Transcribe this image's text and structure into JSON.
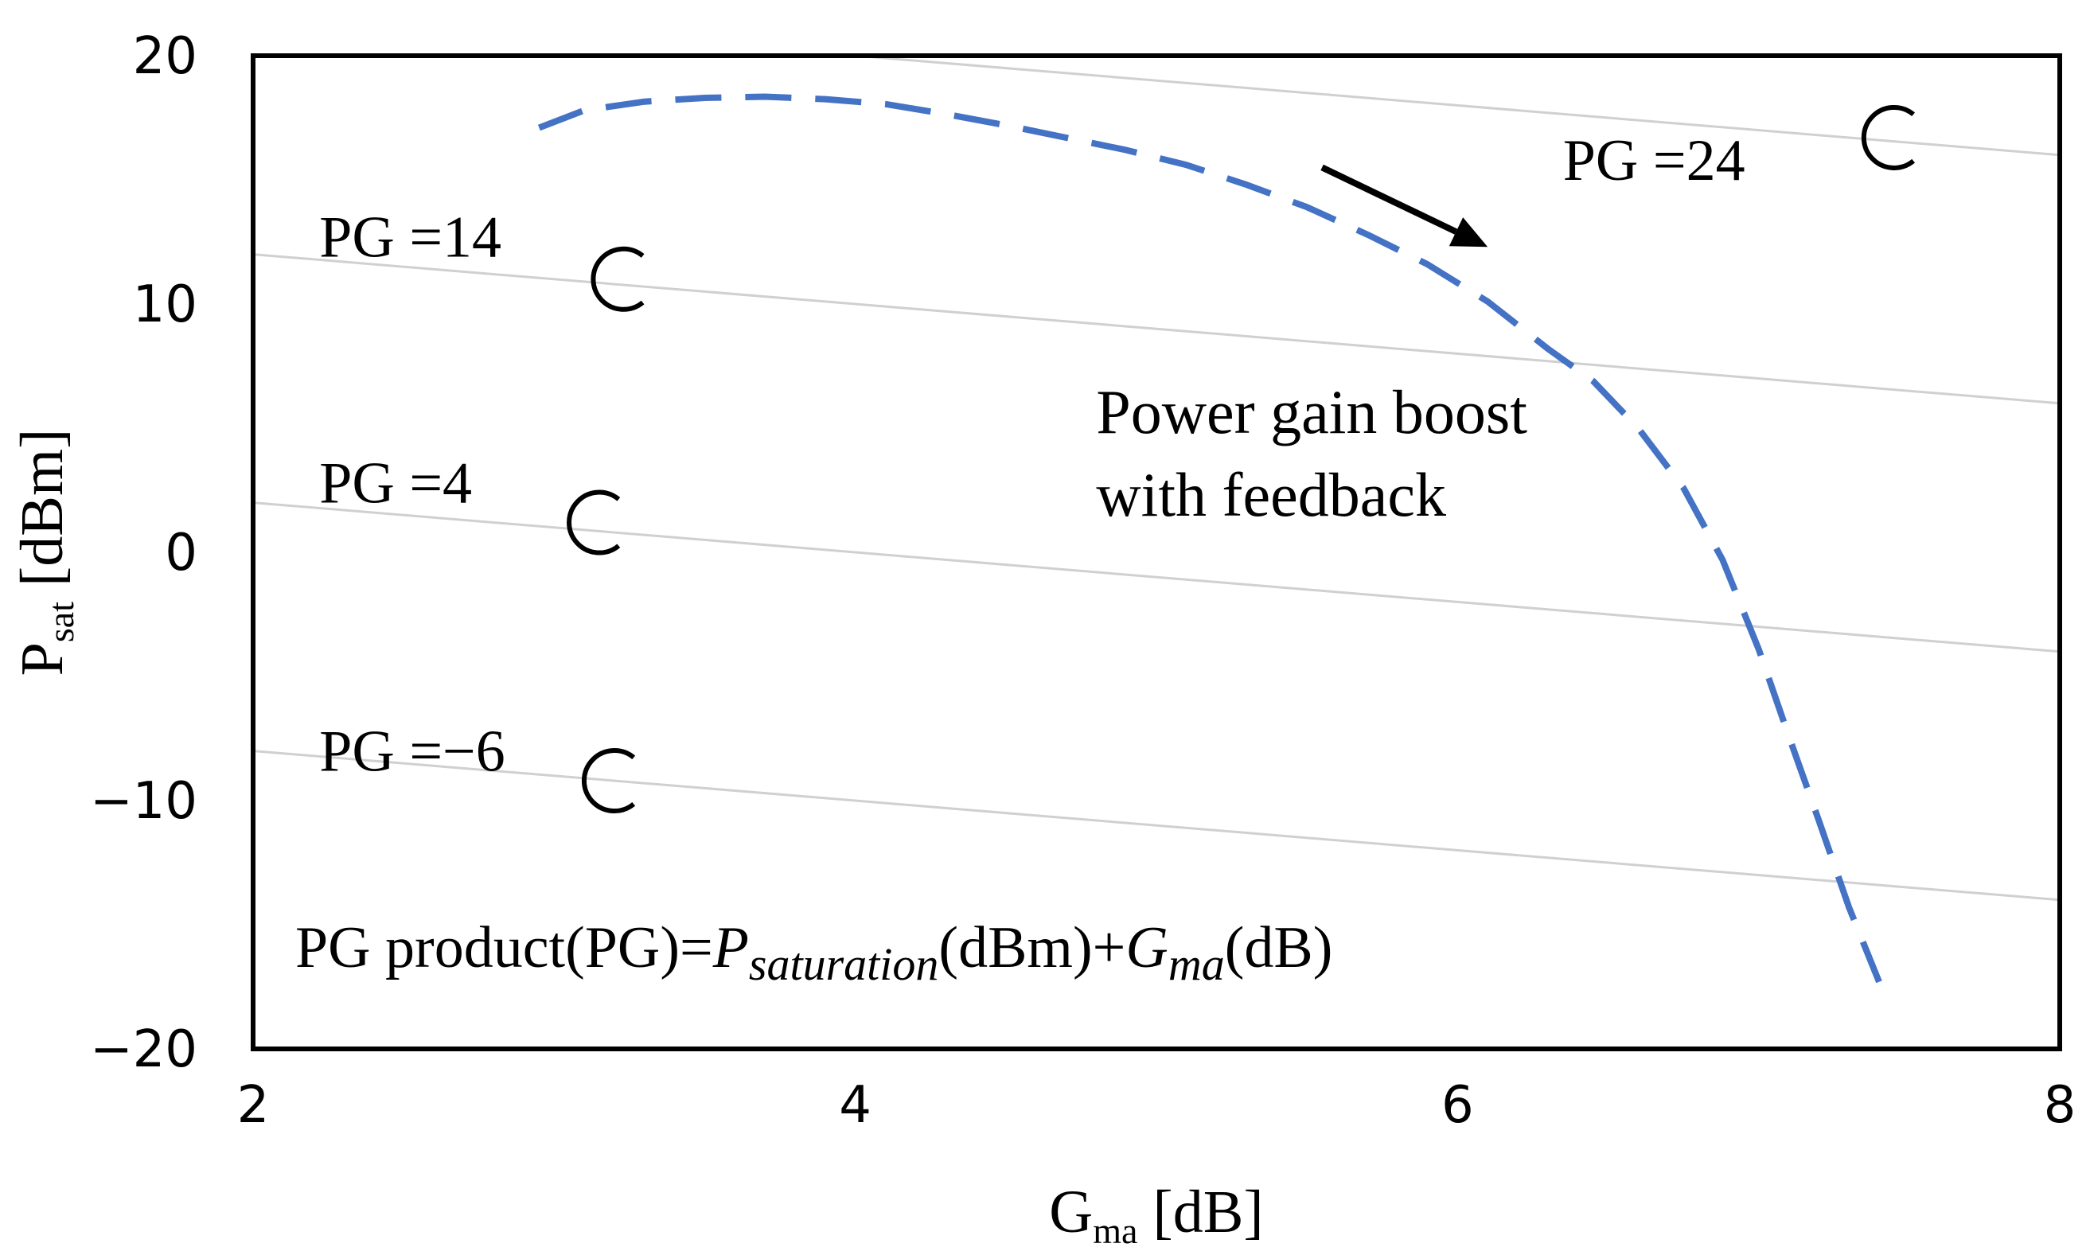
{
  "chart_data": {
    "type": "line",
    "title": "",
    "xlabel": {
      "main": "G",
      "sub": "ma",
      "unit": " [dB]"
    },
    "ylabel": {
      "main": "P",
      "sub": "sat",
      "unit": " [dBm]"
    },
    "xlim": [
      2,
      8
    ],
    "ylim": [
      -20,
      20
    ],
    "x_ticks": [
      {
        "value": 2,
        "label": "2"
      },
      {
        "value": 4,
        "label": "4"
      },
      {
        "value": 6,
        "label": "6"
      },
      {
        "value": 8,
        "label": "8"
      }
    ],
    "y_ticks": [
      {
        "value": 20,
        "label": "20"
      },
      {
        "value": 10,
        "label": "10"
      },
      {
        "value": 0,
        "label": "0"
      },
      {
        "value": -10,
        "label": "−10"
      },
      {
        "value": -20,
        "label": "−20"
      }
    ],
    "grid": false,
    "pg_lines": [
      {
        "pg": 14,
        "label": "PG =14",
        "label_pos": [
          2.22,
          11.9
        ],
        "circle": [
          3.23,
          11.0
        ]
      },
      {
        "pg": 4,
        "label": "PG =4",
        "label_pos": [
          2.22,
          2.0
        ],
        "circle": [
          3.15,
          1.2
        ]
      },
      {
        "pg": -6,
        "label": "PG =−6",
        "label_pos": [
          2.22,
          -8.8
        ],
        "circle": [
          3.2,
          -9.2
        ]
      },
      {
        "pg": 24,
        "label": "PG =24",
        "label_pos": [
          6.35,
          15.0
        ],
        "circle": [
          7.45,
          16.7
        ]
      }
    ],
    "pg_line_color": "#d0d0d0",
    "series": [
      {
        "name": "Power gain boost with feedback",
        "color": "#4472C4",
        "style": "dashed",
        "points": [
          [
            2.95,
            17.1
          ],
          [
            3.1,
            17.8
          ],
          [
            3.3,
            18.15
          ],
          [
            3.5,
            18.3
          ],
          [
            3.7,
            18.35
          ],
          [
            3.9,
            18.25
          ],
          [
            4.1,
            18.05
          ],
          [
            4.3,
            17.65
          ],
          [
            4.5,
            17.2
          ],
          [
            4.7,
            16.7
          ],
          [
            4.9,
            16.2
          ],
          [
            5.1,
            15.6
          ],
          [
            5.3,
            14.8
          ],
          [
            5.5,
            13.9
          ],
          [
            5.7,
            12.8
          ],
          [
            5.9,
            11.6
          ],
          [
            6.1,
            10.1
          ],
          [
            6.3,
            8.2
          ],
          [
            6.45,
            6.9
          ],
          [
            6.6,
            5.0
          ],
          [
            6.75,
            2.6
          ],
          [
            6.88,
            -0.3
          ],
          [
            7.0,
            -3.9
          ],
          [
            7.1,
            -7.4
          ],
          [
            7.2,
            -10.8
          ],
          [
            7.3,
            -14.3
          ],
          [
            7.4,
            -17.3
          ]
        ]
      }
    ],
    "annotations": {
      "boost_line1": "Power gain boost",
      "boost_line2": "with feedback",
      "boost_pos": [
        4.8,
        4.8
      ],
      "arrow_from": [
        5.55,
        15.5
      ],
      "arrow_to": [
        6.1,
        12.3
      ],
      "formula": {
        "prefix": "PG product(PG)=",
        "p_sym": "P",
        "p_sub": "saturation",
        "mid": "(dBm)+",
        "g_sym": "G",
        "g_sub": "ma",
        "suffix": "(dB)"
      },
      "formula_pos": [
        2.14,
        -16.7
      ]
    }
  }
}
